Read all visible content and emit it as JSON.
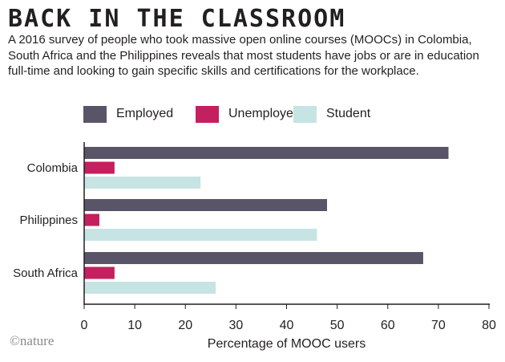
{
  "title": "BACK IN THE CLASSROOM",
  "subtitle": "A 2016 survey of people who took massive open online courses (MOOCs) in Colombia, South Africa and the Philippines reveals that most students have jobs or are in education full-time and looking to gain specific skills and certifications for the workplace.",
  "logo": "©nature",
  "colors": {
    "employed": "#5a5469",
    "unemployed": "#c41f5e",
    "student": "#c6e4e3"
  },
  "chart_data": {
    "type": "bar",
    "orientation": "horizontal",
    "categories": [
      "Colombia",
      "Philippines",
      "South Africa"
    ],
    "series": [
      {
        "name": "Employed",
        "values": [
          72,
          48,
          67
        ]
      },
      {
        "name": "Unemployed",
        "values": [
          6,
          3,
          6
        ]
      },
      {
        "name": "Student",
        "values": [
          23,
          46,
          26
        ]
      }
    ],
    "xlabel": "Percentage of MOOC users",
    "ylabel": "",
    "xlim": [
      0,
      80
    ],
    "xticks": [
      0,
      10,
      20,
      30,
      40,
      50,
      60,
      70,
      80
    ],
    "grid": false,
    "legend": "top-left"
  }
}
